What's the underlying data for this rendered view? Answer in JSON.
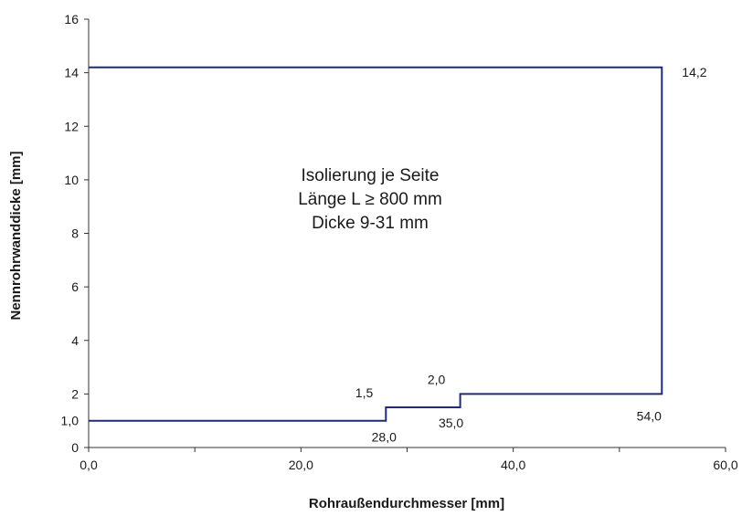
{
  "chart_data": {
    "type": "line",
    "title": "",
    "xlabel": "Rohraußendurchmesser [mm]",
    "ylabel": "Nennrohrwanddicke [mm]",
    "xlim": [
      0,
      60
    ],
    "ylim": [
      0,
      16
    ],
    "x_ticks": [
      0,
      20,
      40,
      60
    ],
    "x_tick_labels": [
      "0,0",
      "20,0",
      "40,0",
      "60,0"
    ],
    "x_minor_ticks": [
      10,
      30,
      50
    ],
    "y_ticks": [
      0,
      2,
      4,
      6,
      8,
      10,
      12,
      14,
      16
    ],
    "y_tick_labels": [
      "0",
      "2",
      "4",
      "6",
      "8",
      "10",
      "12",
      "14",
      "16"
    ],
    "grid": false,
    "line_color": "#1f2a7a",
    "series": [
      {
        "x": [
          0,
          28,
          28,
          35,
          35,
          54,
          54,
          0
        ],
        "y": [
          1,
          1,
          1.5,
          1.5,
          2,
          2,
          14.2,
          14.2
        ]
      }
    ],
    "annotations": [
      {
        "text": "1,0",
        "x": 0,
        "y": 1
      },
      {
        "text": "1,5",
        "x": 28,
        "y": 1.5
      },
      {
        "text": "28,0",
        "x": 28,
        "y": 1
      },
      {
        "text": "2,0",
        "x": 35,
        "y": 2
      },
      {
        "text": "35,0",
        "x": 35,
        "y": 1.5
      },
      {
        "text": "54,0",
        "x": 54,
        "y": 2
      },
      {
        "text": "14,2",
        "x": 54,
        "y": 14.2
      }
    ],
    "center_text": [
      "Isolierung je Seite",
      "Länge L ≥ 800 mm",
      "Dicke 9-31 mm"
    ]
  }
}
